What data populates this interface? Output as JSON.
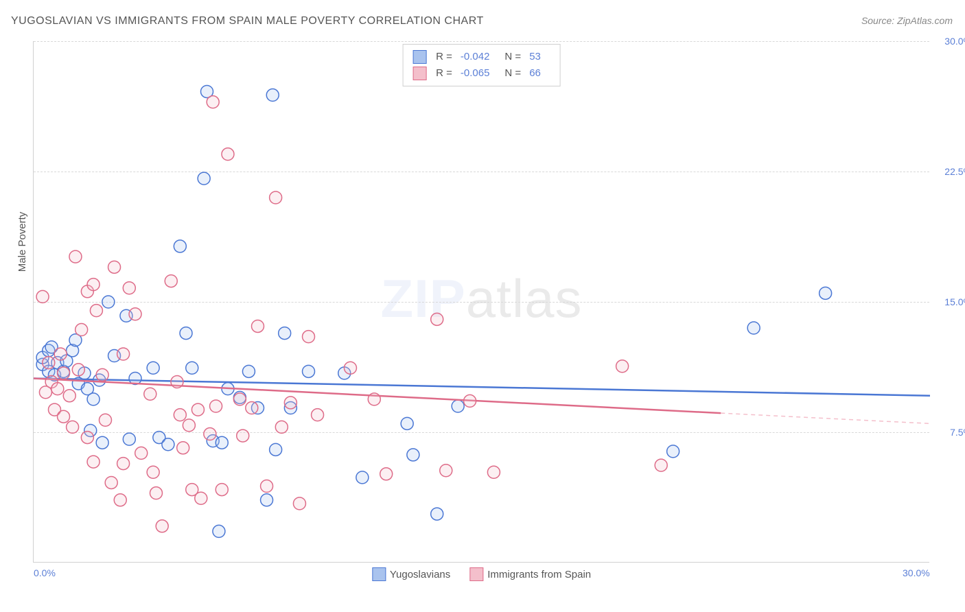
{
  "title": "YUGOSLAVIAN VS IMMIGRANTS FROM SPAIN MALE POVERTY CORRELATION CHART",
  "source_label": "Source: ZipAtlas.com",
  "y_axis_label": "Male Poverty",
  "watermark_zip": "ZIP",
  "watermark_atlas": "atlas",
  "chart": {
    "type": "scatter",
    "xlim": [
      0,
      30
    ],
    "ylim": [
      0,
      30
    ],
    "x_ticks": [
      {
        "value": 0.0,
        "label": "0.0%"
      },
      {
        "value": 30.0,
        "label": "30.0%"
      }
    ],
    "y_ticks": [
      {
        "value": 7.5,
        "label": "7.5%"
      },
      {
        "value": 15.0,
        "label": "15.0%"
      },
      {
        "value": 22.5,
        "label": "22.5%"
      },
      {
        "value": 30.0,
        "label": "30.0%"
      }
    ],
    "grid_color": "#d8d8d8",
    "background_color": "#ffffff",
    "marker_radius": 9,
    "marker_stroke_width": 1.5,
    "marker_fill_opacity": 0.25,
    "series": [
      {
        "id": "yugoslavians",
        "label": "Yugoslavians",
        "stroke": "#4a77d4",
        "fill": "#a9c3ee",
        "R": "-0.042",
        "N": "53",
        "regression": {
          "y_at_x0": 10.6,
          "y_at_xmax": 9.6,
          "dash": false
        },
        "points": [
          [
            0.3,
            11.4
          ],
          [
            0.3,
            11.8
          ],
          [
            0.5,
            12.2
          ],
          [
            0.5,
            11.0
          ],
          [
            0.8,
            11.5
          ],
          [
            0.6,
            12.4
          ],
          [
            0.7,
            10.8
          ],
          [
            1.0,
            11.0
          ],
          [
            1.1,
            11.6
          ],
          [
            1.3,
            12.2
          ],
          [
            1.4,
            12.8
          ],
          [
            1.5,
            10.3
          ],
          [
            1.8,
            10.0
          ],
          [
            1.9,
            7.6
          ],
          [
            2.0,
            9.4
          ],
          [
            1.7,
            10.9
          ],
          [
            2.2,
            10.5
          ],
          [
            2.3,
            6.9
          ],
          [
            2.5,
            15.0
          ],
          [
            2.7,
            11.9
          ],
          [
            3.1,
            14.2
          ],
          [
            3.2,
            7.1
          ],
          [
            3.4,
            10.6
          ],
          [
            4.0,
            11.2
          ],
          [
            4.2,
            7.2
          ],
          [
            4.5,
            6.8
          ],
          [
            4.9,
            18.2
          ],
          [
            5.1,
            13.2
          ],
          [
            5.3,
            11.2
          ],
          [
            5.7,
            22.1
          ],
          [
            5.8,
            27.1
          ],
          [
            6.0,
            7.0
          ],
          [
            6.2,
            1.8
          ],
          [
            6.3,
            6.9
          ],
          [
            6.5,
            10.0
          ],
          [
            6.9,
            9.5
          ],
          [
            7.2,
            11.0
          ],
          [
            7.5,
            8.9
          ],
          [
            7.8,
            3.6
          ],
          [
            8.0,
            26.9
          ],
          [
            8.1,
            6.5
          ],
          [
            8.4,
            13.2
          ],
          [
            8.6,
            8.9
          ],
          [
            9.2,
            11.0
          ],
          [
            10.4,
            10.9
          ],
          [
            11.0,
            4.9
          ],
          [
            12.5,
            8.0
          ],
          [
            12.7,
            6.2
          ],
          [
            13.5,
            2.8
          ],
          [
            14.2,
            9.0
          ],
          [
            21.4,
            6.4
          ],
          [
            24.1,
            13.5
          ],
          [
            26.5,
            15.5
          ]
        ]
      },
      {
        "id": "spain",
        "label": "Immigrants from Spain",
        "stroke": "#de6b88",
        "fill": "#f4bfcb",
        "R": "-0.065",
        "N": "66",
        "regression": {
          "y_at_x0": 10.6,
          "y_at_xmax": 8.0,
          "dash": false
        },
        "regression_extension": {
          "from_x": 23.0,
          "y_at_from": 8.6,
          "y_at_xmax": 8.0,
          "dash": true
        },
        "points": [
          [
            0.3,
            15.3
          ],
          [
            0.4,
            9.8
          ],
          [
            0.5,
            11.5
          ],
          [
            0.6,
            10.4
          ],
          [
            0.7,
            8.8
          ],
          [
            0.8,
            10.0
          ],
          [
            0.9,
            12.0
          ],
          [
            1.0,
            10.9
          ],
          [
            1.0,
            8.4
          ],
          [
            1.2,
            9.6
          ],
          [
            1.3,
            7.8
          ],
          [
            1.4,
            17.6
          ],
          [
            1.5,
            11.1
          ],
          [
            1.6,
            13.4
          ],
          [
            1.8,
            15.6
          ],
          [
            1.8,
            7.2
          ],
          [
            2.0,
            16.0
          ],
          [
            2.0,
            5.8
          ],
          [
            2.1,
            14.5
          ],
          [
            2.3,
            10.8
          ],
          [
            2.4,
            8.2
          ],
          [
            2.6,
            4.6
          ],
          [
            2.7,
            17.0
          ],
          [
            2.9,
            3.6
          ],
          [
            3.0,
            5.7
          ],
          [
            3.0,
            12.0
          ],
          [
            3.2,
            15.8
          ],
          [
            3.4,
            14.3
          ],
          [
            3.6,
            6.3
          ],
          [
            3.9,
            9.7
          ],
          [
            4.0,
            5.2
          ],
          [
            4.1,
            4.0
          ],
          [
            4.3,
            2.1
          ],
          [
            4.6,
            16.2
          ],
          [
            4.8,
            10.4
          ],
          [
            4.9,
            8.5
          ],
          [
            5.0,
            6.6
          ],
          [
            5.2,
            7.9
          ],
          [
            5.3,
            4.2
          ],
          [
            5.5,
            8.8
          ],
          [
            5.6,
            3.7
          ],
          [
            5.9,
            7.4
          ],
          [
            6.0,
            26.5
          ],
          [
            6.1,
            9.0
          ],
          [
            6.3,
            4.2
          ],
          [
            6.5,
            23.5
          ],
          [
            6.9,
            9.4
          ],
          [
            7.0,
            7.3
          ],
          [
            7.3,
            8.9
          ],
          [
            7.5,
            13.6
          ],
          [
            7.8,
            4.4
          ],
          [
            8.1,
            21.0
          ],
          [
            8.3,
            7.8
          ],
          [
            8.6,
            9.2
          ],
          [
            8.9,
            3.4
          ],
          [
            9.2,
            13.0
          ],
          [
            9.5,
            8.5
          ],
          [
            10.6,
            11.2
          ],
          [
            11.4,
            9.4
          ],
          [
            11.8,
            5.1
          ],
          [
            13.5,
            14.0
          ],
          [
            13.8,
            5.3
          ],
          [
            14.6,
            9.3
          ],
          [
            15.4,
            5.2
          ],
          [
            19.7,
            11.3
          ],
          [
            21.0,
            5.6
          ]
        ]
      }
    ]
  },
  "legend_top": {
    "R_label": "R =",
    "N_label": "N ="
  }
}
